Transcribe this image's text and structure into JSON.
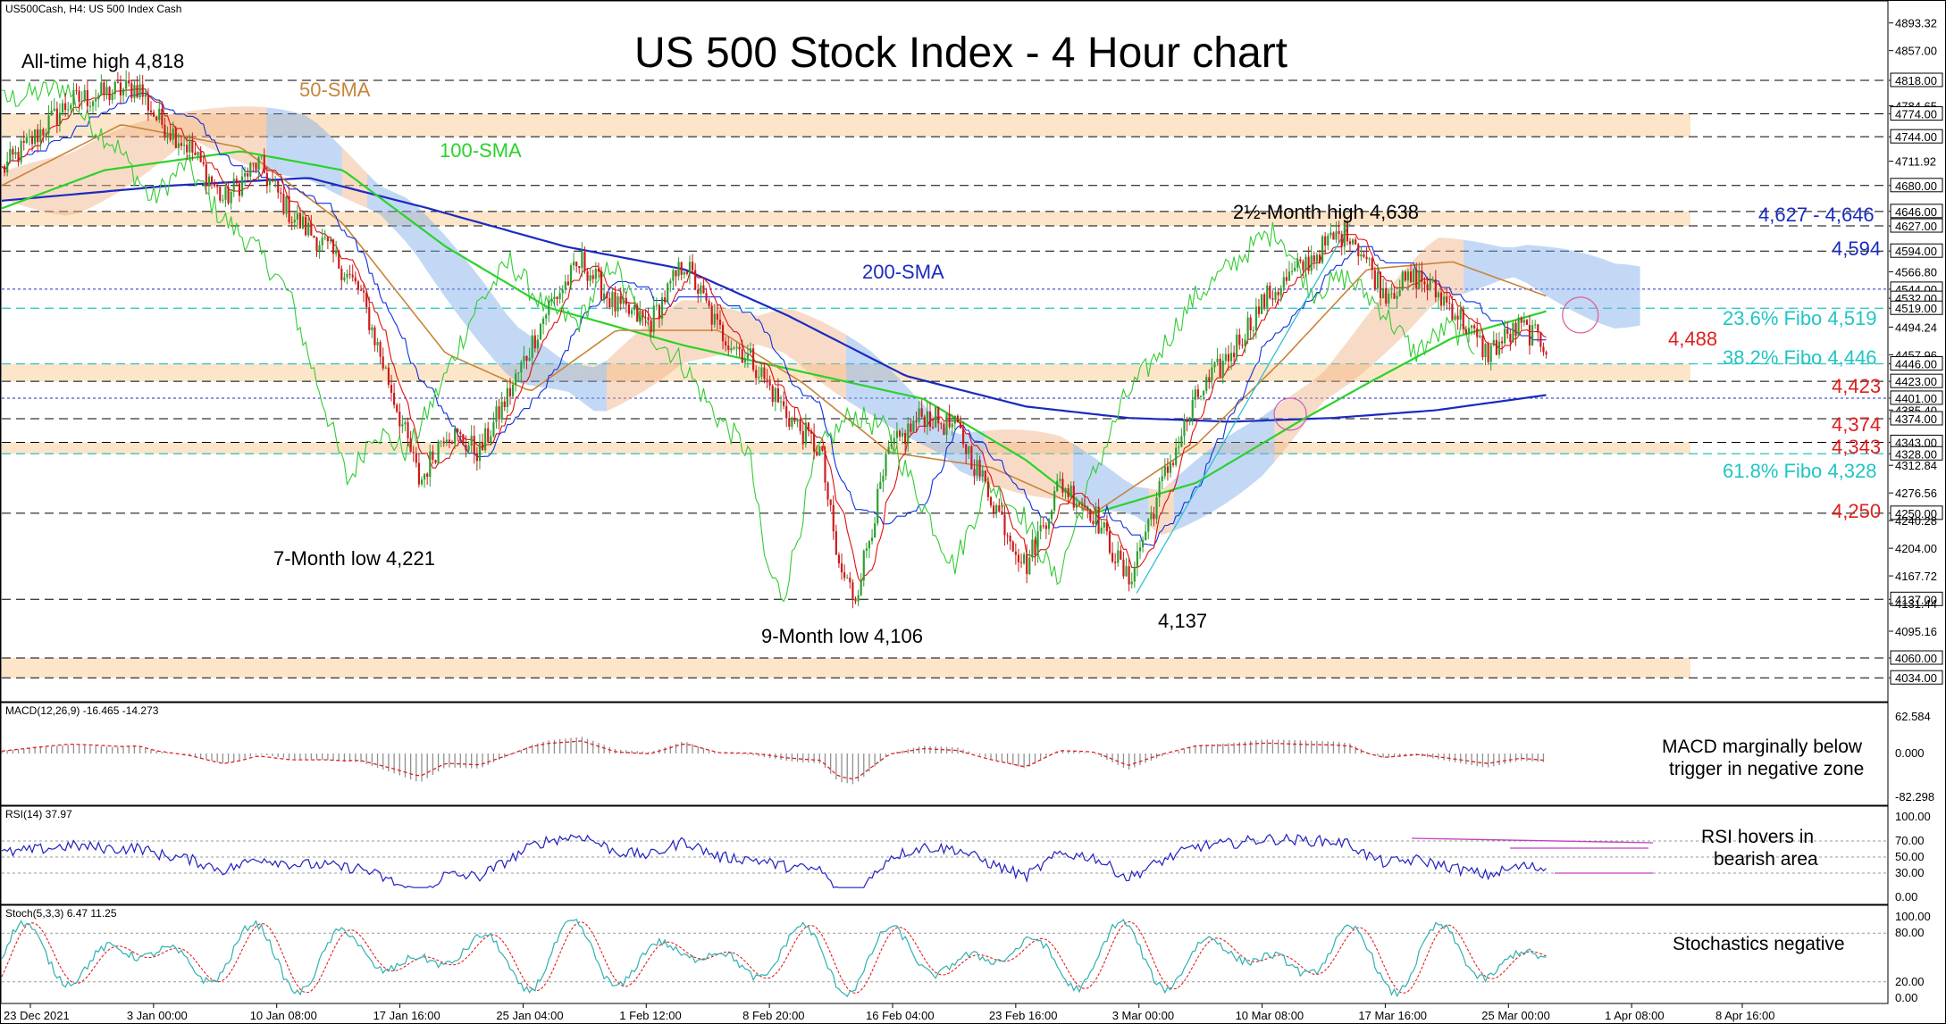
{
  "header": {
    "symbol_info": "US500Cash, H4:  US 500 Index Cash",
    "title": "US 500 Stock Index - 4 Hour chart"
  },
  "colors": {
    "up_candle": "#2e9e2e",
    "down_candle": "#cc1a1a",
    "sma50": "#c8843a",
    "sma100": "#2bd22b",
    "sma200": "#1a2bbf",
    "tenkan": "#e01010",
    "kijun": "#1030e0",
    "chikou": "#33cc33",
    "cloud_bull": "#f0b080",
    "cloud_bear": "#7aa8e8",
    "zone_fill": "#fbe0bf",
    "fibo": "#22c4c4",
    "red_level": "#e02020",
    "blue_level": "#1a2bbf",
    "macd_hist": "#909090",
    "macd_signal": "#e02020",
    "rsi_line": "#2020c0",
    "stoch_k": "#30b0b0",
    "stoch_d": "#e02020",
    "trend_line": "#30c0d0"
  },
  "annotations": {
    "ath": "All-time high 4,818",
    "sma50": "50-SMA",
    "sma100": "100-SMA",
    "sma200": "200-SMA",
    "two_half_month_high": "2½-Month high 4,638",
    "range_4627_4646": "4,627 - 4,646",
    "level_4594": "4,594",
    "fibo_236": "23.6% Fibo 4,519",
    "level_4488": "4,488",
    "fibo_382": "38.2% Fibo 4,446",
    "level_4423": "4,423",
    "level_4374": "4,374",
    "level_4343": "4,343",
    "fibo_618": "61.8% Fibo 4,328",
    "level_4250": "4,250",
    "seven_month_low": "7-Month low 4,221",
    "nine_month_low": "9-Month low 4,106",
    "low_4137": "4,137"
  },
  "price_axis": {
    "labels": [
      "4893.32",
      "4857.00",
      "4818.00",
      "4784.65",
      "4774.00",
      "4744.00",
      "4711.92",
      "4680.00",
      "4646.00",
      "4627.00",
      "4594.00",
      "4566.80",
      "4544.00",
      "4532.00",
      "4519.00",
      "4494.24",
      "4457.96",
      "4446.00",
      "4423.00",
      "4401.00",
      "4385.40",
      "4374.00",
      "4343.00",
      "4328.00",
      "4312.84",
      "4276.56",
      "4250.00",
      "4240.28",
      "4204.00",
      "4167.72",
      "4137.00",
      "4131.44",
      "4095.16",
      "4060.00",
      "4034.00"
    ],
    "boxed": [
      "4818.00",
      "4774.00",
      "4744.00",
      "4680.00",
      "4646.00",
      "4627.00",
      "4594.00",
      "4544.00",
      "4532.00",
      "4519.00",
      "4446.00",
      "4423.00",
      "4401.00",
      "4374.00",
      "4343.00",
      "4328.00",
      "4250.00",
      "4137.00",
      "4060.00",
      "4034.00"
    ]
  },
  "macd": {
    "label": "MACD(12,26,9) -16.465 -14.273",
    "axis": [
      "62.584",
      "0.000",
      "-82.298"
    ],
    "note_lines": [
      "MACD marginally below",
      "trigger in negative zone"
    ]
  },
  "rsi": {
    "label": "RSI(14) 37.97",
    "axis": [
      "100.00",
      "70.00",
      "50.00",
      "30.00",
      "0.00"
    ],
    "note_lines": [
      "RSI hovers in",
      "bearish area"
    ]
  },
  "stoch": {
    "label": "Stoch(5,3,3) 6.47 11.25",
    "axis": [
      "100.00",
      "80.00",
      "20.00",
      "0.00"
    ],
    "note_lines": [
      "Stochastics negative"
    ]
  },
  "time_axis": {
    "labels": [
      "23 Dec 2021",
      "3 Jan 00:00",
      "10 Jan 08:00",
      "17 Jan 16:00",
      "25 Jan 04:00",
      "1 Feb 12:00",
      "8 Feb 20:00",
      "16 Feb 04:00",
      "23 Feb 16:00",
      "3 Mar 00:00",
      "10 Mar 08:00",
      "17 Mar 16:00",
      "25 Mar 00:00",
      "1 Apr 08:00",
      "8 Apr 16:00"
    ]
  },
  "chart_data": {
    "type": "candlestick",
    "instrument": "US500Cash",
    "timeframe": "H4",
    "title": "US 500 Stock Index - 4 Hour chart",
    "x_range": [
      "23 Dec 2021",
      "8 Apr 16:00"
    ],
    "ylim": [
      4010,
      4900
    ],
    "key_points": [
      {
        "x": "early Jan 2022",
        "y": 4818,
        "label": "All-time high 4,818"
      },
      {
        "x": "late Jan 2022",
        "y": 4221,
        "label": "7-Month low 4,221"
      },
      {
        "x": "24 Feb 2022",
        "y": 4106,
        "label": "9-Month low 4,106"
      },
      {
        "x": "14 Mar 2022",
        "y": 4137,
        "label": "4,137"
      },
      {
        "x": "29 Mar 2022",
        "y": 4638,
        "label": "2½-Month high 4,638"
      },
      {
        "x": "8 Apr 2022",
        "y": 4488,
        "label": "4,488"
      }
    ],
    "close_path": [
      {
        "t": 0,
        "y": 4700
      },
      {
        "t": 0.02,
        "y": 4745
      },
      {
        "t": 0.04,
        "y": 4790
      },
      {
        "t": 0.06,
        "y": 4800
      },
      {
        "t": 0.08,
        "y": 4810
      },
      {
        "t": 0.09,
        "y": 4770
      },
      {
        "t": 0.11,
        "y": 4730
      },
      {
        "t": 0.13,
        "y": 4660
      },
      {
        "t": 0.15,
        "y": 4710
      },
      {
        "t": 0.17,
        "y": 4640
      },
      {
        "t": 0.19,
        "y": 4600
      },
      {
        "t": 0.21,
        "y": 4540
      },
      {
        "t": 0.23,
        "y": 4400
      },
      {
        "t": 0.245,
        "y": 4290
      },
      {
        "t": 0.26,
        "y": 4360
      },
      {
        "t": 0.28,
        "y": 4330
      },
      {
        "t": 0.3,
        "y": 4420
      },
      {
        "t": 0.32,
        "y": 4520
      },
      {
        "t": 0.34,
        "y": 4580
      },
      {
        "t": 0.36,
        "y": 4520
      },
      {
        "t": 0.38,
        "y": 4500
      },
      {
        "t": 0.4,
        "y": 4580
      },
      {
        "t": 0.42,
        "y": 4490
      },
      {
        "t": 0.44,
        "y": 4450
      },
      {
        "t": 0.46,
        "y": 4380
      },
      {
        "t": 0.48,
        "y": 4330
      },
      {
        "t": 0.49,
        "y": 4180
      },
      {
        "t": 0.5,
        "y": 4140
      },
      {
        "t": 0.52,
        "y": 4330
      },
      {
        "t": 0.54,
        "y": 4380
      },
      {
        "t": 0.56,
        "y": 4360
      },
      {
        "t": 0.58,
        "y": 4270
      },
      {
        "t": 0.6,
        "y": 4180
      },
      {
        "t": 0.62,
        "y": 4290
      },
      {
        "t": 0.64,
        "y": 4250
      },
      {
        "t": 0.66,
        "y": 4160
      },
      {
        "t": 0.68,
        "y": 4290
      },
      {
        "t": 0.7,
        "y": 4400
      },
      {
        "t": 0.72,
        "y": 4460
      },
      {
        "t": 0.74,
        "y": 4530
      },
      {
        "t": 0.76,
        "y": 4570
      },
      {
        "t": 0.78,
        "y": 4610
      },
      {
        "t": 0.79,
        "y": 4620
      },
      {
        "t": 0.81,
        "y": 4540
      },
      {
        "t": 0.83,
        "y": 4560
      },
      {
        "t": 0.85,
        "y": 4520
      },
      {
        "t": 0.87,
        "y": 4460
      },
      {
        "t": 0.89,
        "y": 4495
      },
      {
        "t": 0.905,
        "y": 4470
      }
    ],
    "sma50_path": [
      {
        "t": 0,
        "y": 4680
      },
      {
        "t": 0.07,
        "y": 4760
      },
      {
        "t": 0.14,
        "y": 4730
      },
      {
        "t": 0.2,
        "y": 4630
      },
      {
        "t": 0.26,
        "y": 4460
      },
      {
        "t": 0.31,
        "y": 4410
      },
      {
        "t": 0.36,
        "y": 4490
      },
      {
        "t": 0.42,
        "y": 4490
      },
      {
        "t": 0.47,
        "y": 4420
      },
      {
        "t": 0.52,
        "y": 4330
      },
      {
        "t": 0.58,
        "y": 4310
      },
      {
        "t": 0.64,
        "y": 4250
      },
      {
        "t": 0.7,
        "y": 4340
      },
      {
        "t": 0.75,
        "y": 4450
      },
      {
        "t": 0.8,
        "y": 4570
      },
      {
        "t": 0.85,
        "y": 4580
      },
      {
        "t": 0.905,
        "y": 4535
      }
    ],
    "sma100_path": [
      {
        "t": 0,
        "y": 4650
      },
      {
        "t": 0.06,
        "y": 4700
      },
      {
        "t": 0.14,
        "y": 4725
      },
      {
        "t": 0.2,
        "y": 4700
      },
      {
        "t": 0.26,
        "y": 4600
      },
      {
        "t": 0.32,
        "y": 4520
      },
      {
        "t": 0.4,
        "y": 4470
      },
      {
        "t": 0.48,
        "y": 4430
      },
      {
        "t": 0.54,
        "y": 4400
      },
      {
        "t": 0.6,
        "y": 4320
      },
      {
        "t": 0.64,
        "y": 4250
      },
      {
        "t": 0.7,
        "y": 4290
      },
      {
        "t": 0.76,
        "y": 4370
      },
      {
        "t": 0.8,
        "y": 4420
      },
      {
        "t": 0.85,
        "y": 4480
      },
      {
        "t": 0.905,
        "y": 4515
      }
    ],
    "sma200_path": [
      {
        "t": 0,
        "y": 4660
      },
      {
        "t": 0.1,
        "y": 4680
      },
      {
        "t": 0.18,
        "y": 4690
      },
      {
        "t": 0.25,
        "y": 4650
      },
      {
        "t": 0.33,
        "y": 4600
      },
      {
        "t": 0.4,
        "y": 4570
      },
      {
        "t": 0.46,
        "y": 4510
      },
      {
        "t": 0.53,
        "y": 4430
      },
      {
        "t": 0.6,
        "y": 4390
      },
      {
        "t": 0.66,
        "y": 4375
      },
      {
        "t": 0.72,
        "y": 4370
      },
      {
        "t": 0.78,
        "y": 4375
      },
      {
        "t": 0.84,
        "y": 4385
      },
      {
        "t": 0.905,
        "y": 4405
      }
    ],
    "zones": [
      {
        "from": 4744,
        "to": 4774
      },
      {
        "from": 4627,
        "to": 4646
      },
      {
        "from": 4423,
        "to": 4446
      },
      {
        "from": 4328,
        "to": 4343
      },
      {
        "from": 4034,
        "to": 4060
      }
    ],
    "levels_black": [
      4818,
      4774,
      4744,
      4680,
      4646,
      4627,
      4594,
      4423,
      4374,
      4343,
      4250,
      4137,
      4060,
      4034
    ],
    "levels_fibo": [
      4519,
      4446,
      4328
    ],
    "levels_blue": [
      4544,
      4401
    ]
  }
}
